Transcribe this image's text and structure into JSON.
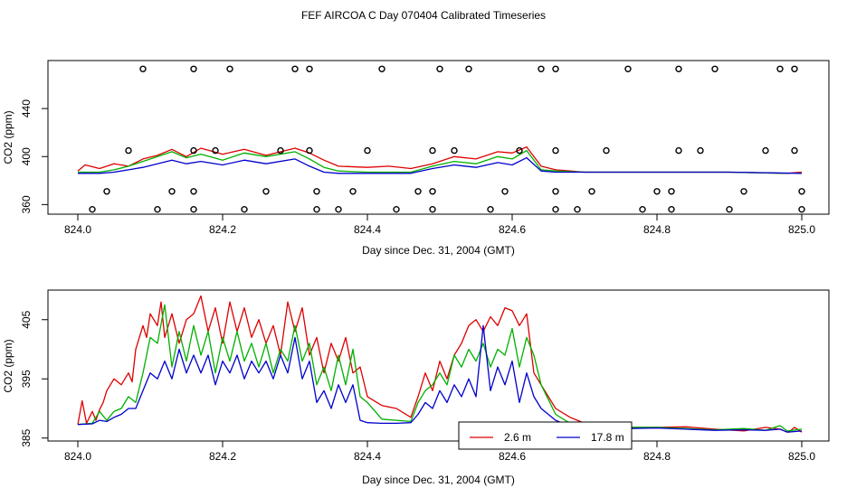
{
  "figure_title": "FEF AIRCOA C  Day 070404  Calibrated Timeseries",
  "colors": {
    "red": "#dd0000",
    "green": "#00b000",
    "blue": "#0000cc",
    "axis": "#000000"
  },
  "chart_data": [
    {
      "type": "line",
      "title": "",
      "xlabel": "Day since Dec. 31, 2004 (GMT)",
      "ylabel": "CO2 (ppm)",
      "xlim": [
        824.0,
        825.0
      ],
      "ylim": [
        352,
        480
      ],
      "xticks": [
        824.0,
        824.2,
        824.4,
        824.6,
        824.8,
        825.0
      ],
      "xtick_labels": [
        "824.0",
        "824.2",
        "824.4",
        "824.6",
        "824.8",
        "825.0"
      ],
      "yticks": [
        360,
        400,
        440
      ],
      "ytick_labels": [
        "360",
        "400",
        "440"
      ],
      "series": [
        {
          "name": "2.6 m",
          "color": "red",
          "x": [
            824.0,
            824.01,
            824.03,
            824.05,
            824.07,
            824.09,
            824.11,
            824.13,
            824.15,
            824.17,
            824.2,
            824.23,
            824.26,
            824.3,
            824.32,
            824.34,
            824.36,
            824.4,
            824.43,
            824.46,
            824.49,
            824.52,
            824.55,
            824.58,
            824.6,
            824.62,
            824.64,
            824.66,
            824.68,
            824.7,
            824.8,
            824.9,
            824.98,
            825.0
          ],
          "y": [
            388,
            393,
            390,
            394,
            392,
            398,
            401,
            406,
            400,
            407,
            402,
            406,
            401,
            407,
            403,
            397,
            392,
            391,
            392,
            390,
            394,
            400,
            398,
            404,
            403,
            408,
            392,
            389,
            388,
            387,
            387,
            387,
            386,
            387
          ]
        },
        {
          "name": "",
          "color": "green",
          "x": [
            824.0,
            824.03,
            824.05,
            824.07,
            824.09,
            824.11,
            824.13,
            824.15,
            824.17,
            824.2,
            824.23,
            824.26,
            824.3,
            824.32,
            824.34,
            824.36,
            824.4,
            824.46,
            824.49,
            824.52,
            824.55,
            824.58,
            824.6,
            824.62,
            824.64,
            824.66,
            824.7,
            824.8,
            824.9,
            824.98
          ],
          "y": [
            387,
            387,
            389,
            392,
            396,
            400,
            404,
            399,
            402,
            397,
            403,
            400,
            404,
            398,
            391,
            388,
            387,
            387,
            392,
            396,
            394,
            400,
            398,
            405,
            389,
            388,
            387,
            387,
            387,
            386
          ]
        },
        {
          "name": "17.8 m",
          "color": "blue",
          "x": [
            824.0,
            824.03,
            824.05,
            824.07,
            824.09,
            824.11,
            824.13,
            824.15,
            824.17,
            824.2,
            824.23,
            824.26,
            824.3,
            824.32,
            824.34,
            824.36,
            824.4,
            824.46,
            824.49,
            824.52,
            824.55,
            824.58,
            824.6,
            824.62,
            824.64,
            824.66,
            824.7,
            824.8,
            824.9,
            825.0
          ],
          "y": [
            386,
            386,
            387,
            389,
            391,
            394,
            397,
            394,
            396,
            393,
            397,
            394,
            398,
            392,
            387,
            386,
            386,
            386,
            390,
            393,
            391,
            395,
            393,
            399,
            388,
            387,
            387,
            387,
            387,
            386
          ]
        }
      ],
      "status_markers": {
        "symbol": "circle",
        "points": [
          [
            824.09,
            473
          ],
          [
            824.16,
            473
          ],
          [
            824.21,
            473
          ],
          [
            824.3,
            473
          ],
          [
            824.32,
            473
          ],
          [
            824.42,
            473
          ],
          [
            824.5,
            473
          ],
          [
            824.54,
            473
          ],
          [
            824.64,
            473
          ],
          [
            824.66,
            473
          ],
          [
            824.76,
            473
          ],
          [
            824.83,
            473
          ],
          [
            824.88,
            473
          ],
          [
            824.97,
            473
          ],
          [
            824.99,
            473
          ],
          [
            824.07,
            405
          ],
          [
            824.16,
            405
          ],
          [
            824.19,
            405
          ],
          [
            824.28,
            405
          ],
          [
            824.32,
            405
          ],
          [
            824.4,
            405
          ],
          [
            824.49,
            405
          ],
          [
            824.52,
            405
          ],
          [
            824.61,
            405
          ],
          [
            824.66,
            405
          ],
          [
            824.73,
            405
          ],
          [
            824.83,
            405
          ],
          [
            824.86,
            405
          ],
          [
            824.95,
            405
          ],
          [
            824.99,
            405
          ],
          [
            824.04,
            371
          ],
          [
            824.13,
            371
          ],
          [
            824.16,
            371
          ],
          [
            824.26,
            371
          ],
          [
            824.33,
            371
          ],
          [
            824.38,
            371
          ],
          [
            824.47,
            371
          ],
          [
            824.49,
            371
          ],
          [
            824.59,
            371
          ],
          [
            824.66,
            371
          ],
          [
            824.71,
            371
          ],
          [
            824.8,
            371
          ],
          [
            824.82,
            371
          ],
          [
            824.92,
            371
          ],
          [
            825.0,
            371
          ],
          [
            824.02,
            356
          ],
          [
            824.11,
            356
          ],
          [
            824.16,
            356
          ],
          [
            824.23,
            356
          ],
          [
            824.33,
            356
          ],
          [
            824.36,
            356
          ],
          [
            824.44,
            356
          ],
          [
            824.49,
            356
          ],
          [
            824.57,
            356
          ],
          [
            824.66,
            356
          ],
          [
            824.69,
            356
          ],
          [
            824.78,
            356
          ],
          [
            824.82,
            356
          ],
          [
            824.9,
            356
          ],
          [
            825.0,
            356
          ]
        ]
      }
    },
    {
      "type": "line",
      "title": "",
      "xlabel": "Day since Dec. 31, 2004 (GMT)",
      "ylabel": "CO2 (ppm)",
      "xlim": [
        824.0,
        825.0
      ],
      "ylim": [
        384.5,
        410
      ],
      "xticks": [
        824.0,
        824.2,
        824.4,
        824.6,
        824.8,
        825.0
      ],
      "xtick_labels": [
        "824.0",
        "824.2",
        "824.4",
        "824.6",
        "824.8",
        "825.0"
      ],
      "yticks": [
        385,
        395,
        405
      ],
      "ytick_labels": [
        "385",
        "395",
        "405"
      ],
      "legend": {
        "placement": "bottom-center",
        "entries": [
          "2.6 m",
          "17.8 m"
        ]
      },
      "series": [
        {
          "name": "2.6 m",
          "color": "red",
          "x": [
            824.0,
            824.006,
            824.012,
            824.02,
            824.025,
            824.03,
            824.035,
            824.04,
            824.05,
            824.06,
            824.07,
            824.075,
            824.08,
            824.09,
            824.095,
            824.1,
            824.11,
            824.115,
            824.12,
            824.13,
            824.14,
            824.15,
            824.16,
            824.17,
            824.18,
            824.19,
            824.2,
            824.21,
            824.22,
            824.23,
            824.24,
            824.25,
            824.26,
            824.27,
            824.28,
            824.29,
            824.3,
            824.31,
            824.32,
            824.33,
            824.34,
            824.35,
            824.36,
            824.37,
            824.38,
            824.39,
            824.4,
            824.42,
            824.44,
            824.46,
            824.47,
            824.48,
            824.49,
            824.5,
            824.51,
            824.52,
            824.53,
            824.54,
            824.55,
            824.56,
            824.57,
            824.58,
            824.59,
            824.6,
            824.61,
            824.62,
            824.63,
            824.64,
            824.66,
            824.68,
            824.7,
            824.73,
            824.76,
            824.8,
            824.84,
            824.88,
            824.92,
            824.95,
            824.97,
            824.98,
            824.985,
            824.99,
            825.0
          ],
          "y": [
            387.3,
            391.3,
            387.5,
            389.5,
            388,
            389.8,
            391,
            393,
            395,
            394,
            396,
            394.5,
            400,
            404,
            402,
            406,
            404,
            408,
            402,
            406,
            401,
            405,
            406,
            409,
            403,
            407,
            401,
            408,
            403,
            407,
            402,
            405,
            401,
            404,
            399,
            408,
            403,
            407,
            399,
            402,
            396,
            401,
            398,
            402,
            396,
            397,
            392,
            390.5,
            390,
            388.5,
            392,
            396,
            393,
            398,
            395,
            399,
            401,
            404,
            405,
            403,
            405.5,
            404,
            407,
            406.5,
            404,
            406,
            396,
            394,
            390,
            388.5,
            387.5,
            387.2,
            386.8,
            386.8,
            386.9,
            386.5,
            386.2,
            386.8,
            386.5,
            386,
            386.3,
            386.8,
            386
          ]
        },
        {
          "name": "",
          "color": "green",
          "x": [
            824.0,
            824.02,
            824.03,
            824.04,
            824.05,
            824.06,
            824.07,
            824.08,
            824.09,
            824.1,
            824.11,
            824.12,
            824.13,
            824.14,
            824.15,
            824.16,
            824.17,
            824.18,
            824.19,
            824.2,
            824.21,
            824.22,
            824.23,
            824.24,
            824.25,
            824.26,
            824.27,
            824.28,
            824.29,
            824.3,
            824.31,
            824.32,
            824.33,
            824.34,
            824.35,
            824.36,
            824.37,
            824.38,
            824.39,
            824.4,
            824.42,
            824.44,
            824.46,
            824.47,
            824.48,
            824.49,
            824.5,
            824.51,
            824.52,
            824.53,
            824.54,
            824.55,
            824.56,
            824.57,
            824.58,
            824.59,
            824.6,
            824.61,
            824.62,
            824.63,
            824.64,
            824.66,
            824.68,
            824.7,
            824.73,
            824.76,
            824.8,
            824.84,
            824.88,
            824.92,
            824.95,
            824.97,
            824.98,
            825.0
          ],
          "y": [
            387.3,
            387.5,
            389.5,
            388,
            389.5,
            390,
            392,
            391,
            396,
            402,
            401,
            407.5,
            397,
            403,
            398,
            404,
            399,
            403,
            396,
            402,
            398,
            403,
            398,
            401,
            397,
            401,
            396,
            400,
            398,
            404,
            398,
            401,
            394,
            397,
            393,
            399,
            394,
            400,
            392,
            391,
            388.2,
            388,
            387.8,
            391,
            393,
            394,
            396,
            394,
            399,
            397,
            400,
            398,
            401,
            397,
            400,
            399,
            403.5,
            397,
            402,
            399,
            394,
            389,
            387.5,
            387,
            386.8,
            386.8,
            386.8,
            386.6,
            386.4,
            386.6,
            386.3,
            387.1,
            386.2,
            386.5
          ]
        },
        {
          "name": "17.8 m",
          "color": "blue",
          "x": [
            824.0,
            824.02,
            824.03,
            824.04,
            824.05,
            824.06,
            824.07,
            824.08,
            824.09,
            824.1,
            824.11,
            824.12,
            824.13,
            824.14,
            824.15,
            824.16,
            824.17,
            824.18,
            824.19,
            824.2,
            824.21,
            824.22,
            824.23,
            824.24,
            824.25,
            824.26,
            824.27,
            824.28,
            824.29,
            824.3,
            824.31,
            824.32,
            824.33,
            824.34,
            824.35,
            824.36,
            824.37,
            824.38,
            824.39,
            824.4,
            824.42,
            824.44,
            824.46,
            824.47,
            824.48,
            824.49,
            824.5,
            824.51,
            824.52,
            824.53,
            824.54,
            824.55,
            824.56,
            824.57,
            824.58,
            824.59,
            824.6,
            824.61,
            824.62,
            824.63,
            824.64,
            824.66,
            824.68,
            824.7,
            824.73,
            824.76,
            824.8,
            824.84,
            824.88,
            824.92,
            824.95,
            824.97,
            824.98,
            825.0
          ],
          "y": [
            387.3,
            387.4,
            388,
            387.8,
            388.5,
            389,
            390,
            390,
            393,
            396,
            395,
            398,
            395,
            400,
            396,
            399,
            396,
            399,
            394,
            398,
            396,
            399,
            395,
            398,
            396,
            398,
            395,
            399,
            396,
            402,
            395,
            398,
            391,
            393,
            390,
            394,
            391,
            394,
            388,
            387.6,
            387.5,
            387.5,
            387.6,
            389,
            391,
            390,
            393,
            391,
            394,
            392,
            395,
            392,
            404,
            393,
            397,
            394,
            398,
            391,
            396,
            392,
            390,
            388,
            387,
            386.8,
            386.8,
            386.6,
            386.7,
            386.5,
            386.3,
            386.4,
            386.3,
            386.5,
            386,
            386.2
          ]
        }
      ]
    }
  ]
}
